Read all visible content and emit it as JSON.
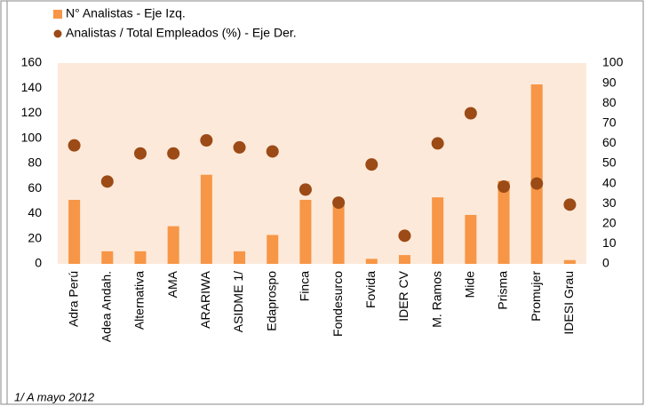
{
  "chart_data": {
    "type": "bar_scatter",
    "categories": [
      "Adra Perú",
      "Adea Andah.",
      "Alternativa",
      "AMA",
      "ARARIWA",
      "ASIDME 1/",
      "Edaprospo",
      "Finca",
      "Fondesurco",
      "Fovida",
      "IDER CV",
      "M. Ramos",
      "Mide",
      "Prisma",
      "Promujer",
      "IDESI Grau"
    ],
    "series": [
      {
        "name": "N° Analistas - Eje Izq.",
        "type": "bar",
        "color": "#f79646",
        "values": [
          51,
          10,
          10,
          30,
          71,
          10,
          23,
          51,
          50,
          4,
          7,
          53,
          39,
          66,
          143,
          3
        ]
      },
      {
        "name": "Analistas / Total Empleados (%) - Eje Der.",
        "type": "scatter",
        "axis": "y2",
        "color": "#9c4a16",
        "values": [
          59,
          41,
          55,
          55,
          61.5,
          58,
          56,
          37,
          30.5,
          49.5,
          14,
          60,
          75,
          38.5,
          40,
          29.5
        ]
      }
    ],
    "ylim": [
      0,
      160
    ],
    "yticks": [
      0,
      20,
      40,
      60,
      80,
      100,
      120,
      140,
      160
    ],
    "y2lim": [
      0,
      100
    ],
    "y2ticks": [
      0,
      10,
      20,
      30,
      40,
      50,
      60,
      70,
      80,
      90,
      100
    ],
    "legend": "top",
    "plot_background": "#fde9d9",
    "note": "1/ A mayo 2012"
  }
}
